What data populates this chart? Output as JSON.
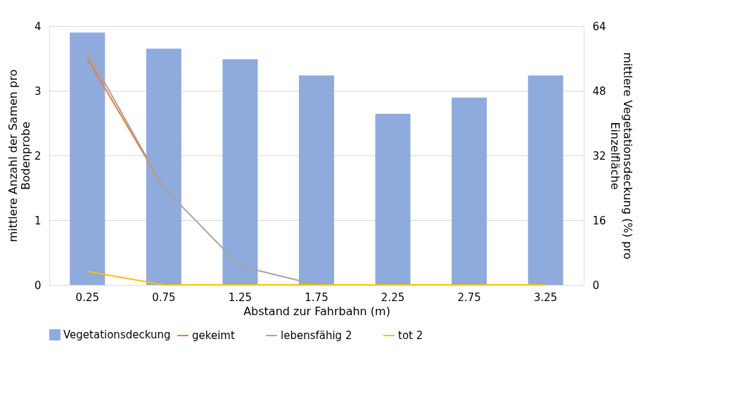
{
  "chart_data": {
    "type": "bar",
    "categories": [
      "0.25",
      "0.75",
      "1.25",
      "1.75",
      "2.25",
      "2.75",
      "3.25"
    ],
    "xlabel": "Abstand zur Fahrbahn (m)",
    "ylabel": "mittlere Anzahl der Samen pro Bodenprobe",
    "y2label": "mittlere Vegetationsdeckung (%) pro Einzelfläche",
    "ylim": [
      0,
      4
    ],
    "yticks": [
      0,
      1,
      2,
      3,
      4
    ],
    "y2lim": [
      0,
      64
    ],
    "y2ticks": [
      0,
      16,
      32,
      48,
      64
    ],
    "grid": "y",
    "legend": "bottom",
    "marker": "none",
    "line_style": "solid",
    "series": [
      {
        "name": "Vegetationsdeckung",
        "axis": "y2",
        "color": "#8faadc",
        "values": [
          62.4,
          58.4,
          55.8,
          51.8,
          42.3,
          46.3,
          51.8
        ]
      },
      {
        "name": "gekeimt",
        "type": "line",
        "color": "#ed7d31",
        "values": [
          3.5,
          1.5,
          null,
          null,
          null,
          null,
          null
        ]
      },
      {
        "name": "lebensfähig 2",
        "type": "line",
        "color": "#a5a5a5",
        "values": [
          3.6,
          1.5,
          0.29,
          0,
          null,
          null,
          null
        ]
      },
      {
        "name": "tot 2",
        "type": "line",
        "color": "#ffc000",
        "values": [
          0.21,
          0,
          0,
          0,
          0,
          0,
          0
        ]
      }
    ]
  }
}
